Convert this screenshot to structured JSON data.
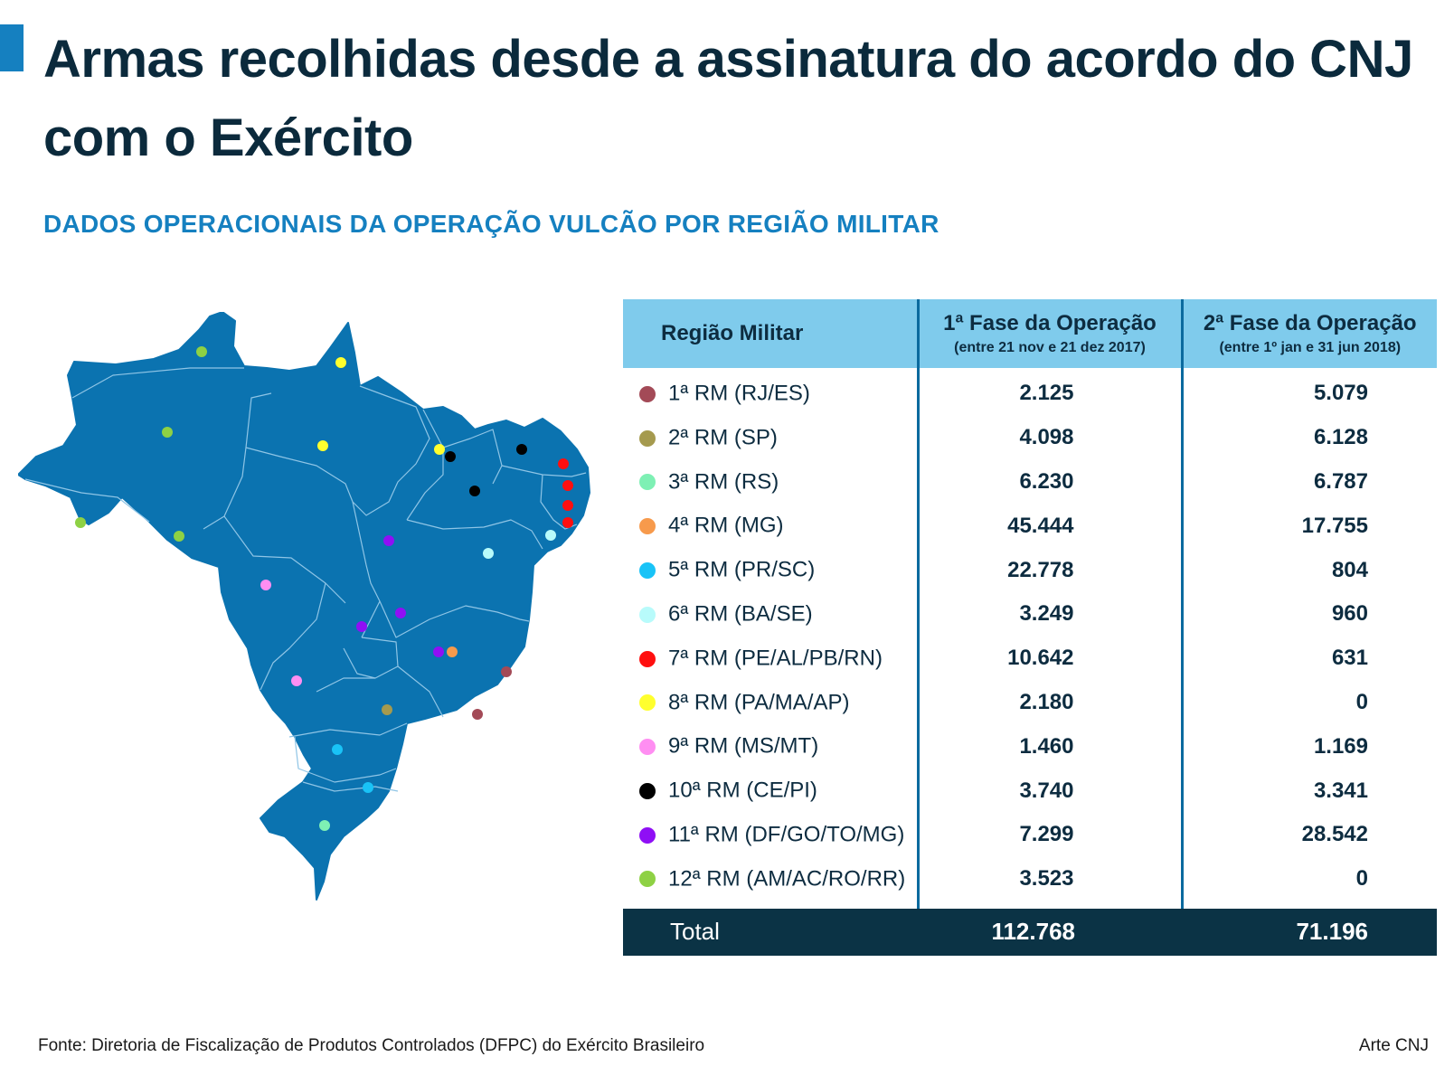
{
  "title": "Armas recolhidas desde a assinatura do acordo do CNJ com o Exército",
  "subtitle": "DADOS OPERACIONAIS DA OPERAÇÃO VULCÃO POR REGIÃO MILITAR",
  "colors": {
    "accent": "#1580c0",
    "map_fill": "#0b73b0",
    "header_bg": "#7fcbec",
    "total_bg": "#0b3345"
  },
  "table": {
    "headers": {
      "region": "Região Militar",
      "phase1_title": "1ª Fase da Operação",
      "phase1_period": "(entre 21 nov e 21 dez 2017)",
      "phase2_title": "2ª Fase da Operação",
      "phase2_period": "(entre 1º jan e 31 jun 2018)"
    },
    "rows": [
      {
        "region": "1ª RM (RJ/ES)",
        "color": "#a34a57",
        "phase1": "2.125",
        "phase2": "5.079"
      },
      {
        "region": "2ª RM (SP)",
        "color": "#a59a4e",
        "phase1": "4.098",
        "phase2": "6.128"
      },
      {
        "region": "3ª RM (RS)",
        "color": "#7ef0b4",
        "phase1": "6.230",
        "phase2": "6.787"
      },
      {
        "region": "4ª RM (MG)",
        "color": "#f79a4c",
        "phase1": "45.444",
        "phase2": "17.755"
      },
      {
        "region": "5ª RM (PR/SC)",
        "color": "#19c3f7",
        "phase1": "22.778",
        "phase2": "804"
      },
      {
        "region": "6ª RM (BA/SE)",
        "color": "#b8fbfb",
        "phase1": "3.249",
        "phase2": "960"
      },
      {
        "region": "7ª RM (PE/AL/PB/RN)",
        "color": "#ff0f0f",
        "phase1": "10.642",
        "phase2": "631"
      },
      {
        "region": "8ª RM (PA/MA/AP)",
        "color": "#ffff2e",
        "phase1": "2.180",
        "phase2": "0"
      },
      {
        "region": "9ª RM (MS/MT)",
        "color": "#ff8ef2",
        "phase1": "1.460",
        "phase2": "1.169"
      },
      {
        "region": "10ª RM (CE/PI)",
        "color": "#000000",
        "phase1": "3.740",
        "phase2": "3.341"
      },
      {
        "region": "11ª RM (DF/GO/TO/MG)",
        "color": "#8f0ff5",
        "phase1": "7.299",
        "phase2": "28.542"
      },
      {
        "region": "12ª RM (AM/AC/RO/RR)",
        "color": "#8ed144",
        "phase1": "3.523",
        "phase2": "0"
      }
    ],
    "total": {
      "label": "Total",
      "phase1": "112.768",
      "phase2": "71.196"
    }
  },
  "source": "Fonte: Diretoria de Fiscalização de Produtos Controlados (DFPC) do Exército Brasileiro",
  "credit": "Arte CNJ"
}
